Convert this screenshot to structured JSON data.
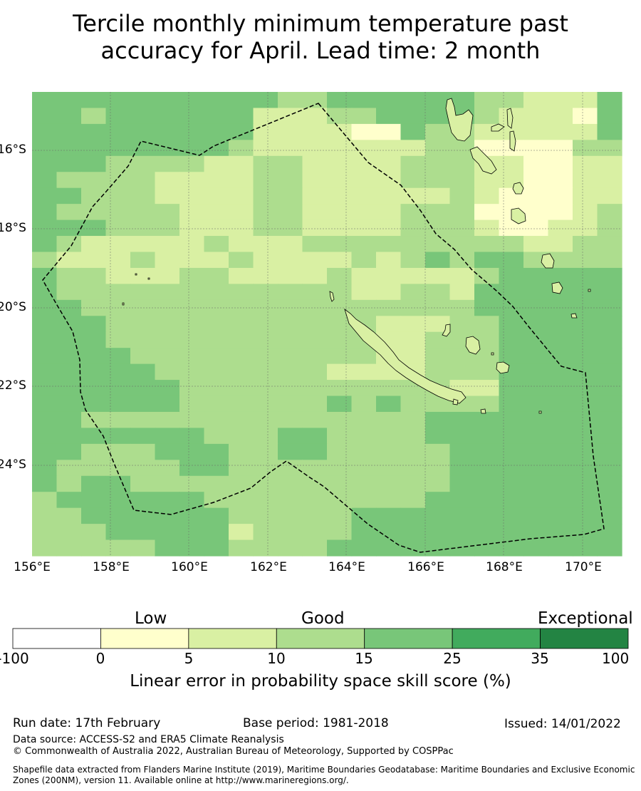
{
  "title_line1": "Tercile monthly minimum temperature past",
  "title_line2": "accuracy for April. Lead time: 2 month",
  "map": {
    "lon_labels": [
      "156°E",
      "158°E",
      "160°E",
      "162°E",
      "164°E",
      "166°E",
      "168°E",
      "170°E"
    ],
    "lat_labels": [
      "16°S",
      "18°S",
      "20°S",
      "22°S",
      "24°S"
    ],
    "lon_range": [
      155.95,
      171.05
    ],
    "lat_range": [
      -14.55,
      -26.4
    ],
    "colors": {
      "0": "#ffffff",
      "1": "#ffffcc",
      "2": "#d9f0a3",
      "3": "#addd8e",
      "4": "#78c679",
      "5": "#41ab5d",
      "6": "#238443",
      "grid_line": "#666666",
      "eez_line": "#000000",
      "coast_line": "#000000"
    }
  },
  "colorbar": {
    "categories": [
      "Low",
      "Good",
      "Exceptional"
    ],
    "ticks": [
      "-100",
      "0",
      "5",
      "10",
      "15",
      "25",
      "35",
      "100"
    ],
    "colors": [
      "#ffffff",
      "#ffffcc",
      "#d9f0a3",
      "#addd8e",
      "#78c679",
      "#41ab5d",
      "#238443"
    ],
    "xlabel": "Linear error in probability space skill score (%)"
  },
  "footer": {
    "run_date": "Run date: 17th February",
    "base_period": "Base period: 1981-2018",
    "issued": "Issued: 14/01/2022",
    "data_source": "Data source: ACCESS-S2 and ERA5 Climate Reanalysis",
    "copyright": "© Commonwealth of Australia 2022, Australian Bureau of Meteorology, Supported by COSPPac",
    "shapefile": "Shapefile data extracted from Flanders Marine Institute (2019), Maritime Boundaries Geodatabase: Maritime Boundaries and Exclusive Economic Zones (200NM), version 11. Available online at http://www.marineregions.org/."
  }
}
